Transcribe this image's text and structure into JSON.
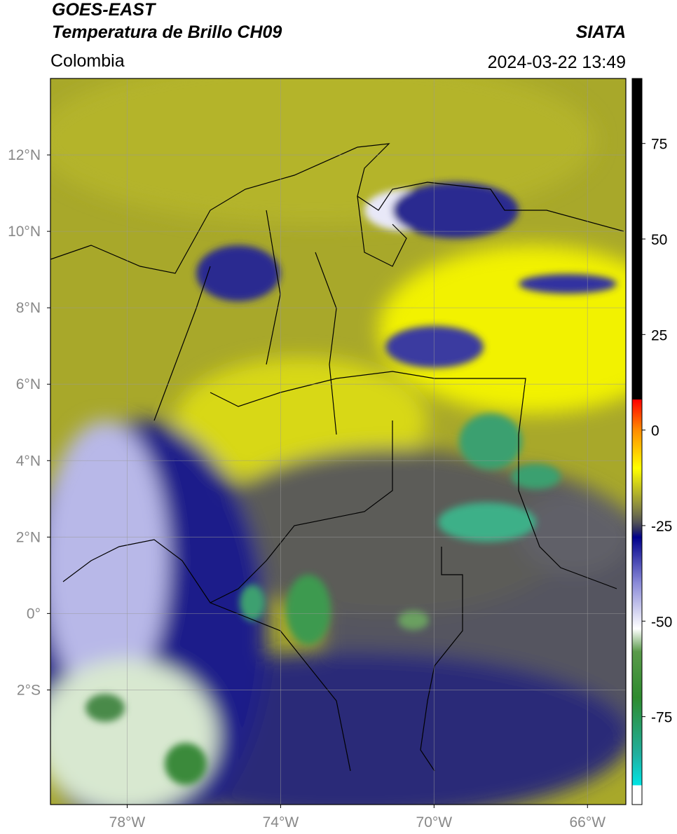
{
  "header": {
    "title": "GOES-EAST",
    "subtitle": "Temperatura de Brillo CH09",
    "source": "SIATA",
    "region": "Colombia",
    "timestamp": "2024-03-22 13:49"
  },
  "map": {
    "xlim": [
      -80,
      -65
    ],
    "ylim": [
      -5,
      14
    ],
    "xticks": [
      {
        "value": -78,
        "label": "78°W"
      },
      {
        "value": -74,
        "label": "74°W"
      },
      {
        "value": -70,
        "label": "70°W"
      },
      {
        "value": -66,
        "label": "66°W"
      }
    ],
    "yticks": [
      {
        "value": 12,
        "label": "12°N"
      },
      {
        "value": 10,
        "label": "10°N"
      },
      {
        "value": 8,
        "label": "8°N"
      },
      {
        "value": 6,
        "label": "6°N"
      },
      {
        "value": 4,
        "label": "4°N"
      },
      {
        "value": 2,
        "label": "2°N"
      },
      {
        "value": 0,
        "label": "0°"
      },
      {
        "value": -2,
        "label": "2°S"
      }
    ],
    "grid": true
  },
  "colorbar": {
    "lim": [
      -98,
      92
    ],
    "ticks": [
      75,
      50,
      25,
      0,
      -25,
      -50,
      -75
    ],
    "colormap": [
      {
        "value": -98,
        "color": "#ffffff"
      },
      {
        "value": -93,
        "color": "#ffffff"
      },
      {
        "value": -93,
        "color": "#00e5e5"
      },
      {
        "value": -85,
        "color": "#20b0a0"
      },
      {
        "value": -70,
        "color": "#2e8b2e"
      },
      {
        "value": -58,
        "color": "#5a9a4a"
      },
      {
        "value": -52,
        "color": "#ffffff"
      },
      {
        "value": -40,
        "color": "#8a8ad8"
      },
      {
        "value": -28,
        "color": "#00008b"
      },
      {
        "value": -26,
        "color": "#303060"
      },
      {
        "value": -24,
        "color": "#555555"
      },
      {
        "value": -20,
        "color": "#8a8a40"
      },
      {
        "value": -10,
        "color": "#ffff00"
      },
      {
        "value": 0,
        "color": "#ff8c00"
      },
      {
        "value": 8,
        "color": "#ff0000"
      },
      {
        "value": 8,
        "color": "#000000"
      },
      {
        "value": 92,
        "color": "#000000"
      }
    ]
  }
}
